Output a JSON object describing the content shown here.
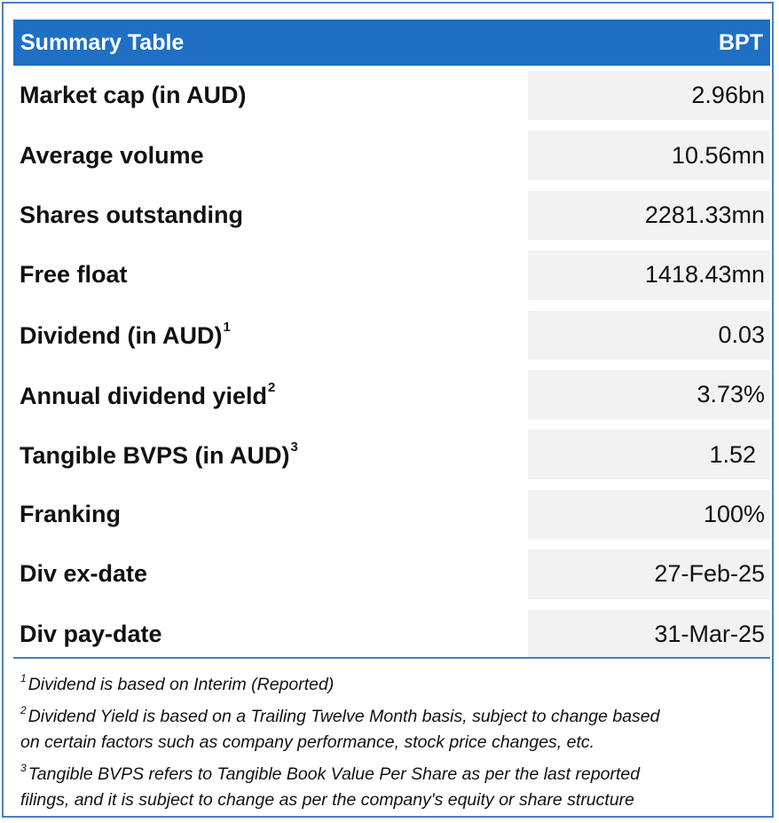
{
  "header": {
    "title": "Summary Table",
    "ticker": "BPT"
  },
  "rows": [
    {
      "label": "Market cap (in AUD)",
      "sup": "",
      "value": "2.96bn"
    },
    {
      "label": "Average volume",
      "sup": "",
      "value": "10.56mn"
    },
    {
      "label": "Shares outstanding",
      "sup": "",
      "value": "2281.33mn"
    },
    {
      "label": "Free float",
      "sup": "",
      "value": "1418.43mn"
    },
    {
      "label": "Dividend (in AUD)",
      "sup": "1",
      "value": "0.03"
    },
    {
      "label": "Annual dividend yield",
      "sup": "2",
      "value": "3.73%"
    },
    {
      "label": "Tangible BVPS (in AUD)",
      "sup": "3",
      "value": "1.52"
    },
    {
      "label": "Franking",
      "sup": "",
      "value": "100%"
    },
    {
      "label": "Div ex-date",
      "sup": "",
      "value": "27-Feb-25"
    },
    {
      "label": "Div pay-date",
      "sup": "",
      "value": "31-Mar-25"
    }
  ],
  "notes": [
    {
      "sup": "1",
      "lines": [
        "Dividend is based on Interim (Reported)"
      ]
    },
    {
      "sup": "2",
      "lines": [
        "Dividend Yield is based on a Trailing Twelve Month basis, subject to change based",
        "on certain factors such as company performance, stock price changes, etc."
      ]
    },
    {
      "sup": "3",
      "lines": [
        "Tangible BVPS refers to Tangible Book Value Per Share as per the last reported",
        "filings, and it is subject to change as per the company's equity or share structure"
      ]
    }
  ],
  "colors": {
    "header_bg": "#1f6fc5",
    "value_bg": "#f2f2f2",
    "border": "#4a7ec2"
  }
}
